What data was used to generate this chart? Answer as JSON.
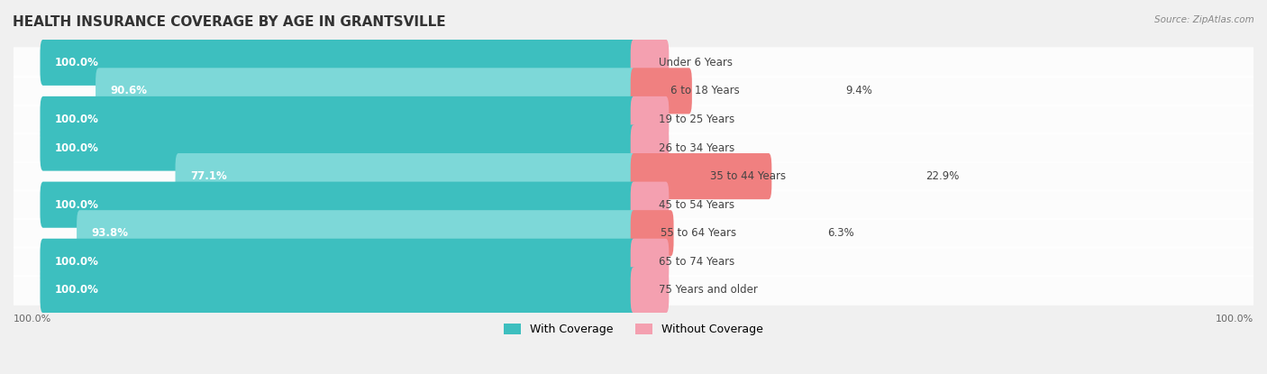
{
  "title": "HEALTH INSURANCE COVERAGE BY AGE IN GRANTSVILLE",
  "source": "Source: ZipAtlas.com",
  "categories": [
    "Under 6 Years",
    "6 to 18 Years",
    "19 to 25 Years",
    "26 to 34 Years",
    "35 to 44 Years",
    "45 to 54 Years",
    "55 to 64 Years",
    "65 to 74 Years",
    "75 Years and older"
  ],
  "with_coverage": [
    100.0,
    90.6,
    100.0,
    100.0,
    77.1,
    100.0,
    93.8,
    100.0,
    100.0
  ],
  "without_coverage": [
    0.0,
    9.4,
    0.0,
    0.0,
    22.9,
    0.0,
    6.3,
    0.0,
    0.0
  ],
  "color_with": "#3dbfbf",
  "color_without": "#f08080",
  "color_with_light": "#7dd8d8",
  "color_without_light": "#f4a0b0",
  "bg_color": "#f0f0f0",
  "bar_bg": "#e8e8e8",
  "row_bg": "#f8f8f8",
  "title_fontsize": 11,
  "label_fontsize": 8.5,
  "tick_fontsize": 8,
  "legend_fontsize": 9
}
